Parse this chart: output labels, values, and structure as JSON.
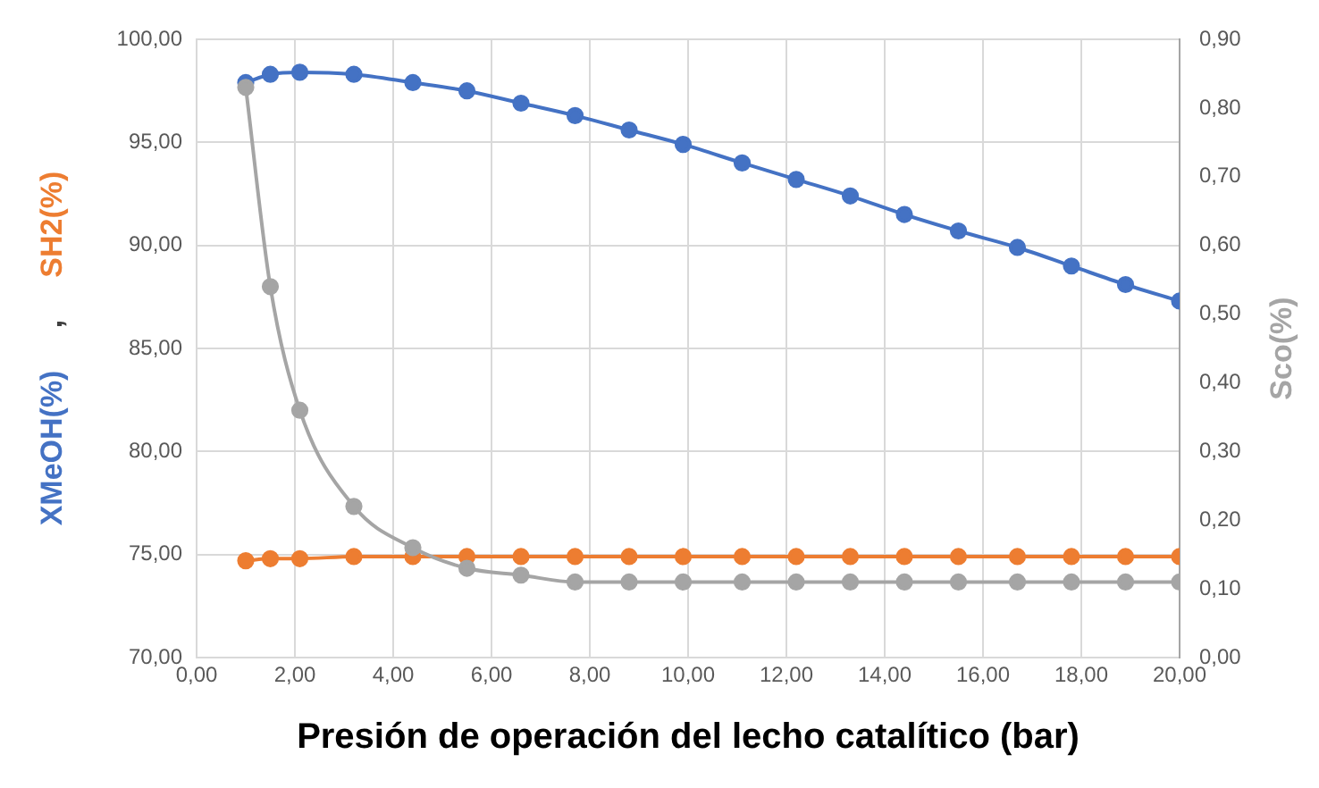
{
  "chart_data": {
    "type": "line",
    "xlabel": "Presión de operación del lecho catalítico (bar)",
    "ylabel": "XMeOH(%)     ,     SH2(%)",
    "y2label": "Sco(%)",
    "x": [
      1,
      1.5,
      2.1,
      3.2,
      4.4,
      5.5,
      6.6,
      7.7,
      8.8,
      9.9,
      11.1,
      12.2,
      13.3,
      14.4,
      15.5,
      16.7,
      17.8,
      18.9,
      20
    ],
    "series": [
      {
        "color": "#4472c4",
        "values": [
          97.9,
          98.3,
          98.4,
          98.3,
          97.9,
          97.5,
          96.9,
          96.3,
          95.6,
          94.9,
          94.0,
          93.2,
          92.4,
          91.5,
          90.7,
          89.9,
          89.0,
          88.1,
          87.3
        ]
      },
      {
        "color": "#ed7d31",
        "values": [
          74.7,
          74.8,
          74.8,
          74.9,
          74.9,
          74.9,
          74.9,
          74.9,
          74.9,
          74.9,
          74.9,
          74.9,
          74.9,
          74.9,
          74.9,
          74.9,
          74.9,
          74.9,
          74.9
        ]
      },
      {
        "color": "#a5a5a5",
        "axis": "y2",
        "values": [
          0.83,
          0.54,
          0.36,
          0.22,
          0.16,
          0.13,
          0.12,
          0.11,
          0.11,
          0.11,
          0.11,
          0.11,
          0.11,
          0.11,
          0.11,
          0.11,
          0.11,
          0.11,
          0.11
        ]
      }
    ],
    "xlim": [
      0,
      20
    ],
    "xticks": [
      {
        "value": 0,
        "label": "0,00"
      },
      {
        "value": 2,
        "label": "2,00"
      },
      {
        "value": 4,
        "label": "4,00"
      },
      {
        "value": 6,
        "label": "6,00"
      },
      {
        "value": 8,
        "label": "8,00"
      },
      {
        "value": 10,
        "label": "10,00"
      },
      {
        "value": 12,
        "label": "12,00"
      },
      {
        "value": 14,
        "label": "14,00"
      },
      {
        "value": 16,
        "label": "16,00"
      },
      {
        "value": 18,
        "label": "18,00"
      },
      {
        "value": 20,
        "label": "20,00"
      }
    ],
    "ylim": [
      70,
      100
    ],
    "yticks": [
      {
        "value": 70,
        "label": "70,00"
      },
      {
        "value": 75,
        "label": "75,00"
      },
      {
        "value": 80,
        "label": "80,00"
      },
      {
        "value": 85,
        "label": "85,00"
      },
      {
        "value": 90,
        "label": "90,00"
      },
      {
        "value": 95,
        "label": "95,00"
      },
      {
        "value": 100,
        "label": "100,00"
      }
    ],
    "y2lim": [
      0,
      0.9
    ],
    "y2ticks": [
      {
        "value": 0,
        "label": "0,00"
      },
      {
        "value": 0.1,
        "label": "0,10"
      },
      {
        "value": 0.2,
        "label": "0,20"
      },
      {
        "value": 0.3,
        "label": "0,30"
      },
      {
        "value": 0.4,
        "label": "0,40"
      },
      {
        "value": 0.5,
        "label": "0,50"
      },
      {
        "value": 0.6,
        "label": "0,60"
      },
      {
        "value": 0.7,
        "label": "0,70"
      },
      {
        "value": 0.8,
        "label": "0,80"
      },
      {
        "value": 0.9,
        "label": "0,90"
      }
    ],
    "grid": true,
    "marker": "circle",
    "line_style": "solid"
  }
}
